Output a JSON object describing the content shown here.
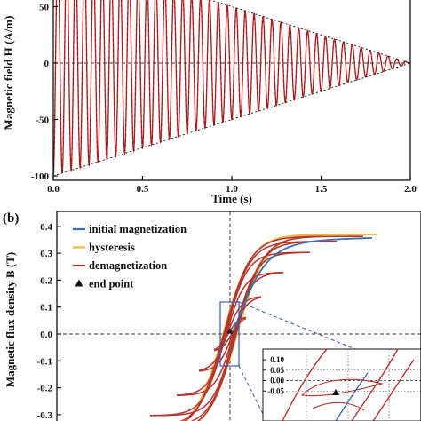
{
  "colors": {
    "waveform": "#cc2222",
    "envelope": "#222222",
    "initial": "#3a6fb0",
    "hysteresis": "#e8b94a",
    "demag": "#b5342c",
    "inset_box": "#3a5cb8"
  },
  "chart_data": [
    {
      "type": "line",
      "panel_label": "",
      "title": "",
      "xlabel": "Time (s)",
      "ylabel": "Magnetic field H (A/m)",
      "xlim": [
        0,
        2.0
      ],
      "ylim": [
        -105,
        55
      ],
      "xticks": [
        "0.0",
        "0.5",
        "1.0",
        "1.5",
        "2.0"
      ],
      "yticks": [
        "-100",
        "-50",
        "0",
        "50"
      ],
      "series": [
        {
          "style": "solid-with-dashes",
          "description_of_data": "decaying sinusoid",
          "amplitude_start": 100,
          "amplitude_end": 0,
          "duration": 2.0,
          "frequency_hz": 20,
          "phase_start_value": -100
        }
      ],
      "envelope": {
        "style": "dotted",
        "upper": [
          [
            0,
            100
          ],
          [
            2.0,
            0
          ]
        ],
        "lower": [
          [
            0,
            -100
          ],
          [
            2.0,
            0
          ]
        ]
      },
      "reference_line": {
        "y": 0,
        "style": "dashed"
      }
    },
    {
      "type": "line",
      "panel_label": "(b)",
      "title": "",
      "xlabel": "",
      "ylabel": "Magnetic flux density B (T)",
      "xlim": [
        -1,
        1
      ],
      "ylim": [
        -0.32,
        0.42
      ],
      "yticks": [
        "-0.3",
        "-0.2",
        "-0.1",
        "0.0",
        "0.1",
        "0.2",
        "0.3",
        "0.4"
      ],
      "legend": {
        "position": "top-left",
        "entries": [
          {
            "label": "initial magnetization",
            "marker": "line",
            "colorKey": "initial"
          },
          {
            "label": "hysteresis",
            "marker": "line",
            "colorKey": "hysteresis"
          },
          {
            "label": "demagnetization",
            "marker": "line",
            "colorKey": "demag"
          },
          {
            "label": "end point",
            "marker": "triangle",
            "colorKey": "black"
          }
        ]
      },
      "saturation_B": 0.37,
      "end_point": [
        0,
        0.01
      ],
      "inset": {
        "yticks": [
          "0.10",
          "0.05",
          "0.00",
          "-0.05"
        ],
        "ylim": [
          -0.07,
          0.11
        ]
      }
    }
  ]
}
